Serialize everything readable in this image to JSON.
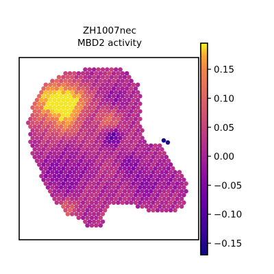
{
  "chart_data": {
    "type": "spatial-hexbin",
    "title_lines": [
      "ZH1007nec",
      "MBD2 activity"
    ],
    "colormap": "plasma",
    "colorbar": {
      "min": -0.17,
      "max": 0.195,
      "ticks": [
        0.15,
        0.1,
        0.05,
        0.0,
        -0.05,
        -0.1,
        -0.15
      ],
      "tick_labels": [
        "0.15",
        "0.10",
        "0.05",
        "0.00",
        "−0.05",
        "−0.10",
        "−0.15"
      ],
      "placement": "right"
    },
    "axes": {
      "xticks": false,
      "yticks": false,
      "frame": true
    },
    "value_summary": {
      "typical": 0.03,
      "min_observed": -0.16,
      "max_observed": 0.19
    },
    "colors": {
      "frame": "#000000",
      "background": "#ffffff"
    }
  }
}
